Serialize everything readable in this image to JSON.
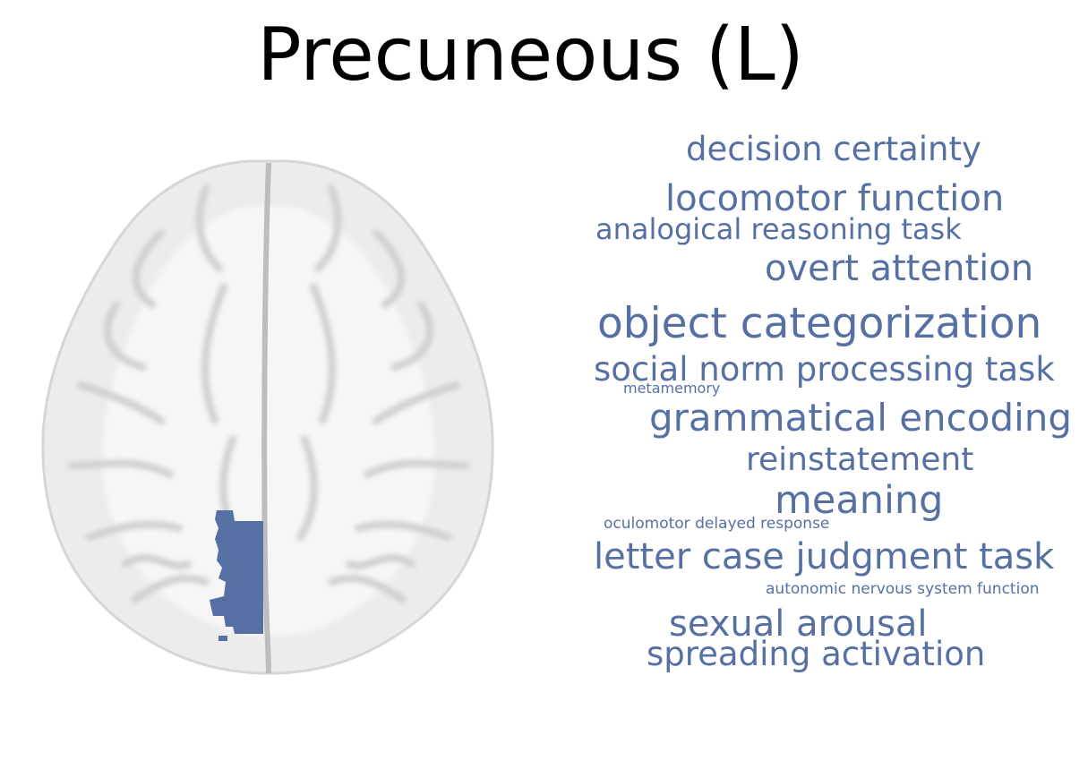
{
  "title": "Precuneous (L)",
  "colors": {
    "region": "#5670a3",
    "word": "#5670a3",
    "brain_fill": "#ececec",
    "brain_sulcus": "#c9c9c9",
    "background": "#ffffff"
  },
  "brain": {
    "view": "axial",
    "highlighted_region": "precuneus-left"
  },
  "word_cloud": [
    {
      "text": "decision certainty"
    },
    {
      "text": "locomotor function"
    },
    {
      "text": "analogical reasoning task"
    },
    {
      "text": "overt attention"
    },
    {
      "text": "object categorization"
    },
    {
      "text": "social norm processing task"
    },
    {
      "text": "metamemory"
    },
    {
      "text": "grammatical encoding"
    },
    {
      "text": "reinstatement"
    },
    {
      "text": "meaning"
    },
    {
      "text": "oculomotor delayed response"
    },
    {
      "text": "letter case judgment task"
    },
    {
      "text": "autonomic nervous system function"
    },
    {
      "text": "sexual arousal"
    },
    {
      "text": "spreading activation"
    }
  ]
}
